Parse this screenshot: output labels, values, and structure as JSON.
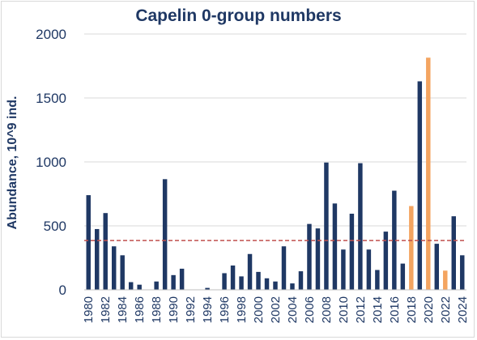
{
  "chart_data": {
    "type": "bar",
    "title": "Capelin 0-group numbers",
    "xlabel": "",
    "ylabel": "Abundance,  10^9 ind.",
    "ylim": [
      0,
      2000
    ],
    "yticks": [
      0,
      500,
      1000,
      1500,
      2000
    ],
    "grid": true,
    "legend": "none",
    "categories": [
      "1980",
      "1981",
      "1982",
      "1983",
      "1984",
      "1985",
      "1986",
      "1987",
      "1988",
      "1989",
      "1990",
      "1991",
      "1992",
      "1993",
      "1994",
      "1995",
      "1996",
      "1997",
      "1998",
      "1999",
      "2000",
      "2001",
      "2002",
      "2003",
      "2004",
      "2005",
      "2006",
      "2007",
      "2008",
      "2009",
      "2010",
      "2011",
      "2012",
      "2013",
      "2014",
      "2015",
      "2016",
      "2017",
      "2018",
      "2019",
      "2020",
      "2021",
      "2022",
      "2023",
      "2024"
    ],
    "x_tick_labels": [
      "1980",
      "1982",
      "1984",
      "1986",
      "1988",
      "1990",
      "1992",
      "1994",
      "1996",
      "1998",
      "2000",
      "2002",
      "2004",
      "2006",
      "2008",
      "2010",
      "2012",
      "2014",
      "2016",
      "2018",
      "2020",
      "2022",
      "2024"
    ],
    "values": [
      740,
      475,
      600,
      340,
      270,
      60,
      40,
      0,
      65,
      865,
      115,
      165,
      0,
      0,
      15,
      0,
      130,
      190,
      105,
      280,
      140,
      90,
      65,
      340,
      50,
      145,
      515,
      480,
      995,
      675,
      315,
      595,
      990,
      315,
      155,
      455,
      775,
      205,
      655,
      1630,
      1815,
      360,
      150,
      575,
      270
    ],
    "highlight_years": [
      "2018",
      "2020",
      "2022"
    ],
    "reference_line": {
      "value": 385,
      "style": "dashed"
    },
    "colors": {
      "bar": "#1f3864",
      "highlight": "#f4a460",
      "reference_line": "#c0504d",
      "grid": "#d9d9d9",
      "text": "#1f3864"
    }
  }
}
